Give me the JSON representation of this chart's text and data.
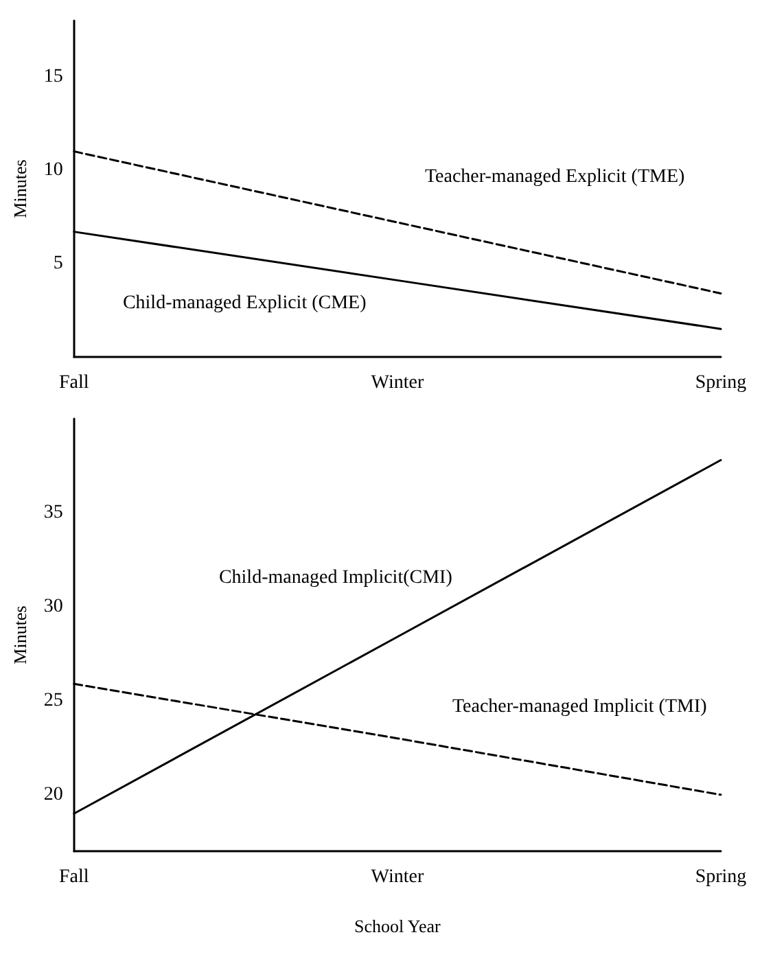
{
  "chart_data": [
    {
      "type": "line",
      "ylabel": "Minutes",
      "categories": [
        "Fall",
        "Winter",
        "Spring"
      ],
      "ylim": [
        0,
        18
      ],
      "yticks": [
        5,
        10,
        15
      ],
      "grid": false,
      "legend": false,
      "marker": "none",
      "series": [
        {
          "name": "Teacher-managed Explicit (TME)",
          "color": "#000000",
          "line_style": "dashed",
          "values": [
            11.0,
            7.2,
            3.4
          ]
        },
        {
          "name": "Child-managed Explicit (CME)",
          "color": "#000000",
          "line_style": "solid",
          "values": [
            6.7,
            4.1,
            1.5
          ]
        }
      ]
    },
    {
      "type": "line",
      "ylabel": "Minutes",
      "xlabel": "School Year",
      "categories": [
        "Fall",
        "Winter",
        "Spring"
      ],
      "ylim": [
        17,
        40
      ],
      "yticks": [
        20,
        25,
        30,
        35
      ],
      "grid": false,
      "legend": false,
      "marker": "none",
      "series": [
        {
          "name": "Child-managed Implicit(CMI)",
          "color": "#000000",
          "line_style": "solid",
          "values": [
            19.0,
            28.4,
            37.8
          ]
        },
        {
          "name": "Teacher-managed Implicit (TMI)",
          "color": "#000000",
          "line_style": "dashed",
          "values": [
            25.9,
            23.0,
            20.0
          ]
        }
      ]
    }
  ]
}
